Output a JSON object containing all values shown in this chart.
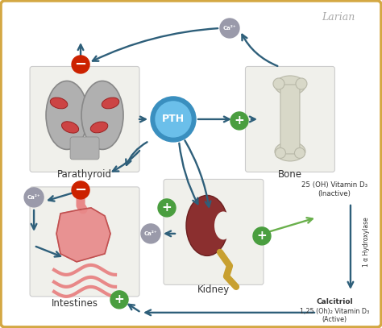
{
  "bg_color": "#ffffff",
  "border_color": "#d4a843",
  "arrow_color": "#2e5f7a",
  "green_color": "#4a9e3f",
  "green_arrow_color": "#6ab04c",
  "red_color": "#cc2200",
  "ca_color": "#9a9aaa",
  "pth_outer": "#3a8fbf",
  "pth_inner": "#6bbfea",
  "box_fill": "#f0f0eb",
  "box_edge": "#cccccc",
  "text_color": "#333333",
  "bone_fill": "#d8d8c8",
  "bone_edge": "#b8b8a8",
  "thyroid_fill": "#b0b0b0",
  "thyroid_edge": "#888888",
  "nodule_fill": "#cc4444",
  "nodule_edge": "#992222",
  "kidney_fill": "#8b2f2f",
  "kidney_edge": "#6b1f1f",
  "stomach_fill": "#e88888",
  "stomach_edge": "#c05050",
  "ureter_color": "#c8a030",
  "label_parathyroid": "Parathyroid",
  "label_bone": "Bone",
  "label_kidney": "Kidney",
  "label_intestines": "Intestines",
  "label_pth": "PTH",
  "label_ca": "Ca²⁺",
  "label_vitd": "25 (OH) Vitamin D₃\n(Inactive)",
  "label_hydroxylase": "1 α Hydroxylase",
  "label_calcitriol": "Calcitriol",
  "label_calcitriol_sub": "1,25 (Oh)₂ Vitamin D₃\n(Active)",
  "label_larian": "Larian"
}
